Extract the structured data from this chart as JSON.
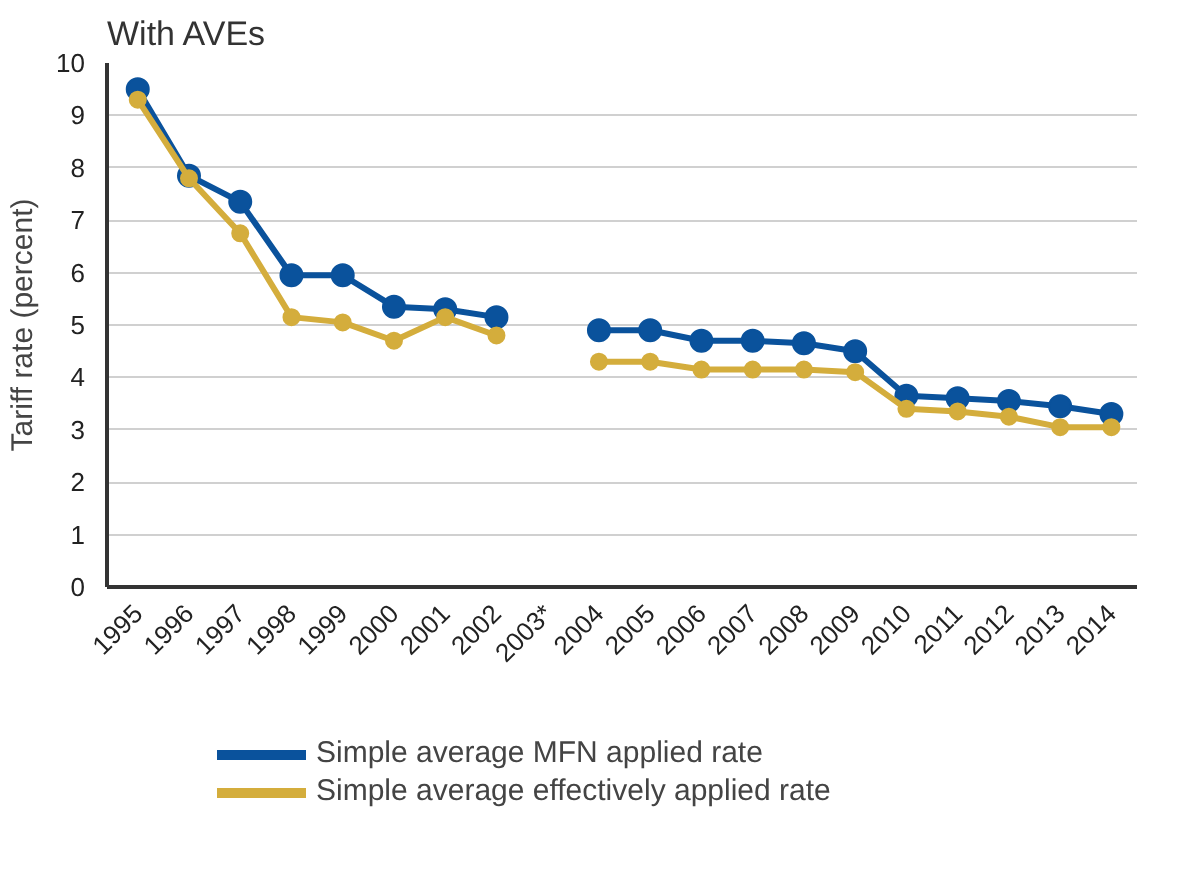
{
  "chart_data": {
    "type": "line",
    "title": "With AVEs",
    "ylabel": "Tariff rate (percent)",
    "categories": [
      "1995",
      "1996",
      "1997",
      "1998",
      "1999",
      "2000",
      "2001",
      "2002",
      "2003*",
      "2004",
      "2005",
      "2006",
      "2007",
      "2008",
      "2009",
      "2010",
      "2011",
      "2012",
      "2013",
      "2014"
    ],
    "series": [
      {
        "name": "Simple average MFN applied rate",
        "color": "#0a529c",
        "values": [
          9.5,
          7.85,
          7.35,
          5.95,
          5.95,
          5.35,
          5.3,
          5.15,
          null,
          4.9,
          4.9,
          4.7,
          4.7,
          4.65,
          4.5,
          3.65,
          3.6,
          3.55,
          3.45,
          3.3
        ]
      },
      {
        "name": "Simple average effectively applied rate",
        "color": "#d4ad3c",
        "values": [
          9.3,
          7.8,
          6.75,
          5.15,
          5.05,
          4.7,
          5.15,
          4.8,
          null,
          4.3,
          4.3,
          4.15,
          4.15,
          4.15,
          4.1,
          3.4,
          3.35,
          3.25,
          3.05,
          3.05
        ]
      }
    ],
    "ylim": [
      0,
      10
    ],
    "yticks": [
      0,
      1,
      2,
      3,
      4,
      5,
      6,
      7,
      8,
      9,
      10
    ],
    "grid": "y",
    "legend": "bottom",
    "marker": "circle",
    "line_style": "solid"
  }
}
